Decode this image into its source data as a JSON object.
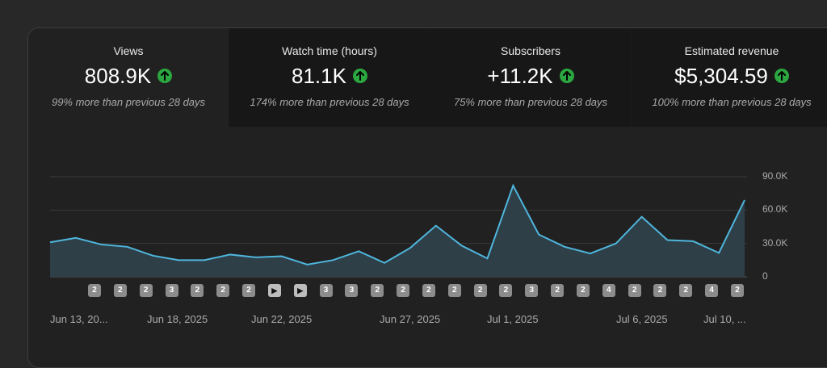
{
  "tabs": [
    {
      "title": "Views",
      "value": "808.9K",
      "sub": "99% more than previous 28 days",
      "trend_icon": "arrow-up-icon"
    },
    {
      "title": "Watch time (hours)",
      "value": "81.1K",
      "sub": "174% more than previous 28 days",
      "trend_icon": "arrow-up-icon"
    },
    {
      "title": "Subscribers",
      "value": "+11.2K",
      "sub": "75% more than previous 28 days",
      "trend_icon": "arrow-up-icon"
    },
    {
      "title": "Estimated revenue",
      "value": "$5,304.59",
      "sub": "100% more than previous 28 days",
      "trend_icon": "arrow-up-icon"
    }
  ],
  "colors": {
    "line": "#4fb6dd",
    "fill": "#2e3f48",
    "up_badge": "#2ba640",
    "marker": "#8c8c8c"
  },
  "chart_data": {
    "type": "area",
    "y_tick_labels": [
      "90.0K",
      "60.0K",
      "30.0K",
      "0"
    ],
    "ylim": [
      0,
      90000
    ],
    "x_tick_labels": [
      "Jun 13, 20...",
      "Jun 18, 2025",
      "Jun 22, 2025",
      "Jun 27, 2025",
      "Jul 1, 2025",
      "Jul 6, 2025",
      "Jul 10, ..."
    ],
    "series": [
      {
        "values": [
          31000,
          35000,
          29000,
          27000,
          19000,
          15000,
          15000,
          20000,
          17500,
          18500,
          11000,
          15000,
          23000,
          12500,
          26000,
          46000,
          28000,
          16500,
          82000,
          38000,
          27000,
          21000,
          30000,
          54000,
          33000,
          32000,
          21500,
          69000
        ]
      }
    ],
    "markers": [
      "2",
      "2",
      "2",
      "3",
      "2",
      "2",
      "2",
      "play",
      "play",
      "3",
      "3",
      "2",
      "2",
      "2",
      "2",
      "2",
      "2",
      "3",
      "2",
      "2",
      "4",
      "2",
      "2",
      "2",
      "4",
      "2"
    ],
    "grid": true
  }
}
